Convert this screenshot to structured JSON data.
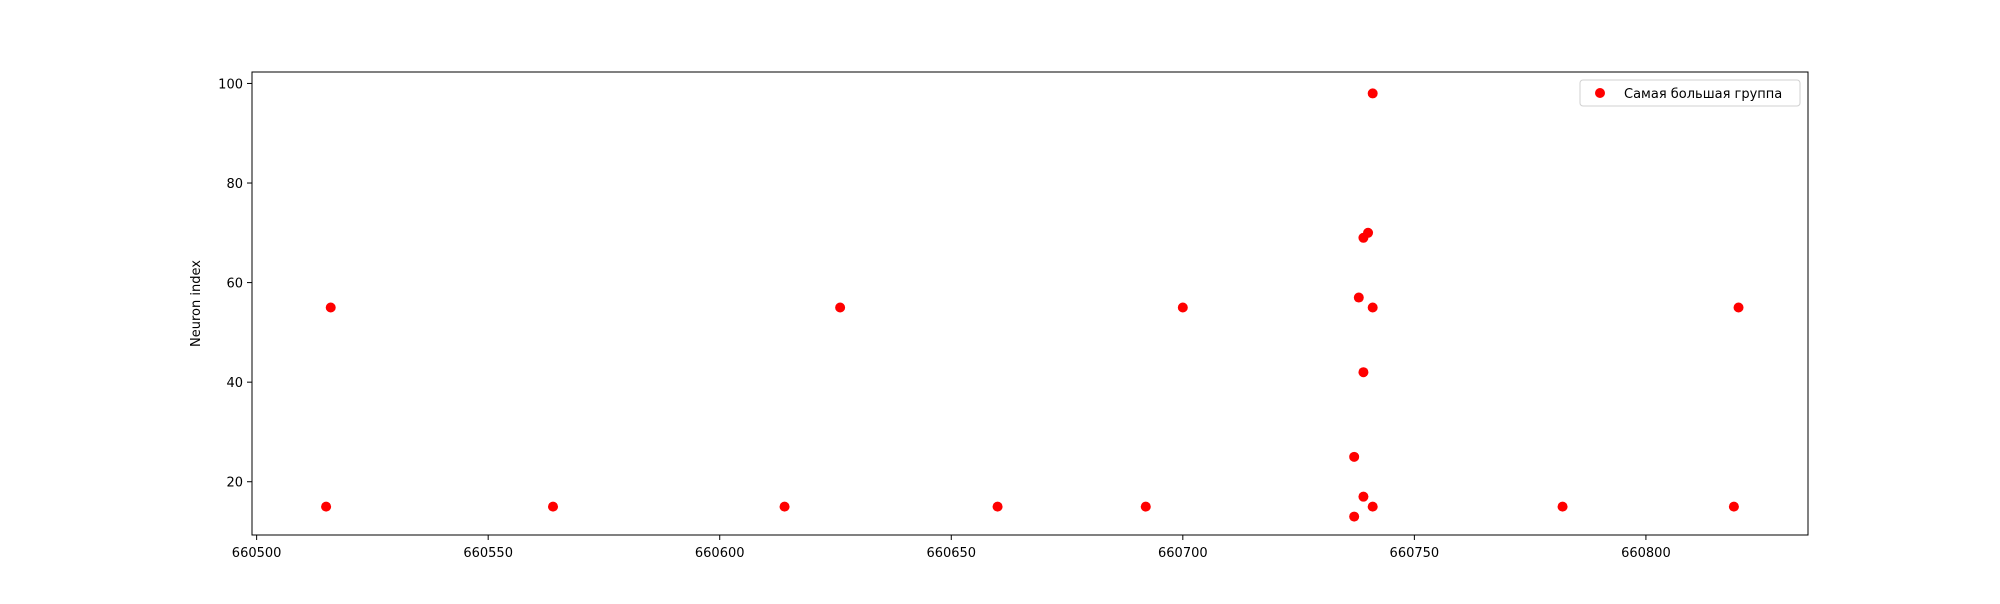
{
  "chart_data": {
    "type": "scatter",
    "title": "",
    "xlabel": "",
    "ylabel": "Neuron index",
    "xlim": [
      660499,
      660835
    ],
    "ylim": [
      9.3,
      102.3
    ],
    "xticks": [
      660500,
      660550,
      660600,
      660650,
      660700,
      660750,
      660800
    ],
    "yticks": [
      20,
      40,
      60,
      80,
      100
    ],
    "grid": false,
    "legend_position": "top-right",
    "series": [
      {
        "name": "Самая большая группа",
        "color": "#ff0000",
        "marker": "circle",
        "points": [
          {
            "x": 660515,
            "y": 15
          },
          {
            "x": 660516,
            "y": 55
          },
          {
            "x": 660564,
            "y": 15
          },
          {
            "x": 660614,
            "y": 15
          },
          {
            "x": 660626,
            "y": 55
          },
          {
            "x": 660660,
            "y": 15
          },
          {
            "x": 660692,
            "y": 15
          },
          {
            "x": 660700,
            "y": 55
          },
          {
            "x": 660737,
            "y": 13
          },
          {
            "x": 660737,
            "y": 25
          },
          {
            "x": 660738,
            "y": 57
          },
          {
            "x": 660739,
            "y": 42
          },
          {
            "x": 660739,
            "y": 17
          },
          {
            "x": 660739,
            "y": 69
          },
          {
            "x": 660740,
            "y": 70
          },
          {
            "x": 660741,
            "y": 55
          },
          {
            "x": 660741,
            "y": 15
          },
          {
            "x": 660741,
            "y": 98
          },
          {
            "x": 660782,
            "y": 15
          },
          {
            "x": 660819,
            "y": 15
          },
          {
            "x": 660820,
            "y": 55
          }
        ]
      }
    ]
  }
}
